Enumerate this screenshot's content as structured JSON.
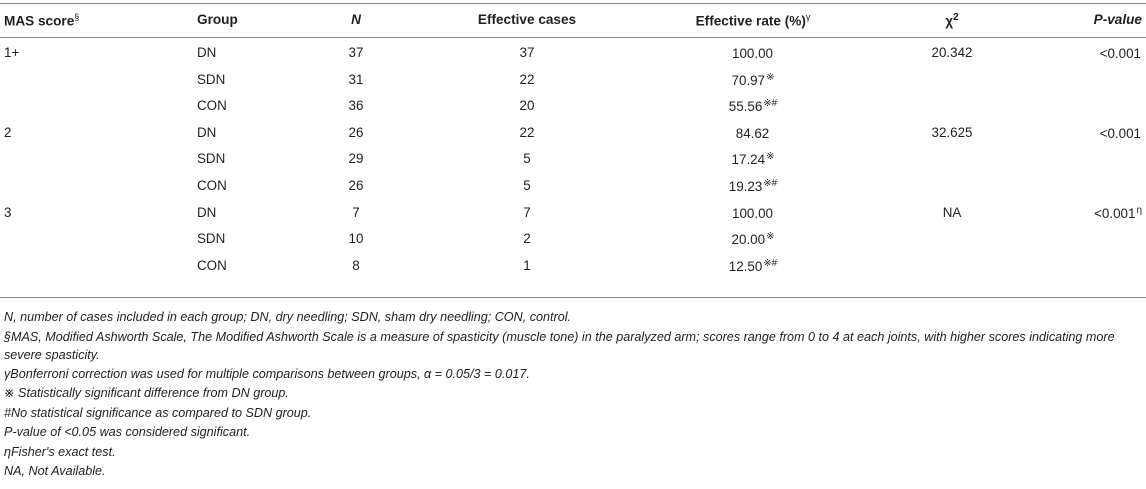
{
  "table": {
    "headers": {
      "mas": "MAS score",
      "mas_sup": "§",
      "group": "Group",
      "n": "N",
      "effective_cases": "Effective cases",
      "effective_rate": "Effective rate (%)",
      "effective_rate_sup": "γ",
      "chi": "χ",
      "chi_sup": "2",
      "p": "P-value"
    },
    "rows": [
      {
        "score": "1+",
        "group": "DN",
        "n": "37",
        "eff": "37",
        "rate": "100.00",
        "rate_mark": "",
        "chi": "20.342",
        "p": "<0.001",
        "p_mark": ""
      },
      {
        "score": "",
        "group": "SDN",
        "n": "31",
        "eff": "22",
        "rate": "70.97",
        "rate_mark": "※",
        "chi": "",
        "p": "",
        "p_mark": ""
      },
      {
        "score": "",
        "group": "CON",
        "n": "36",
        "eff": "20",
        "rate": "55.56",
        "rate_mark": "※#",
        "chi": "",
        "p": "",
        "p_mark": ""
      },
      {
        "score": "2",
        "group": "DN",
        "n": "26",
        "eff": "22",
        "rate": "84.62",
        "rate_mark": "",
        "chi": "32.625",
        "p": "<0.001",
        "p_mark": ""
      },
      {
        "score": "",
        "group": "SDN",
        "n": "29",
        "eff": "5",
        "rate": "17.24",
        "rate_mark": "※",
        "chi": "",
        "p": "",
        "p_mark": ""
      },
      {
        "score": "",
        "group": "CON",
        "n": "26",
        "eff": "5",
        "rate": "19.23",
        "rate_mark": "※#",
        "chi": "",
        "p": "",
        "p_mark": ""
      },
      {
        "score": "3",
        "group": "DN",
        "n": "7",
        "eff": "7",
        "rate": "100.00",
        "rate_mark": "",
        "chi": "NA",
        "p": "<0.001",
        "p_mark": "η"
      },
      {
        "score": "",
        "group": "SDN",
        "n": "10",
        "eff": "2",
        "rate": "20.00",
        "rate_mark": "※",
        "chi": "",
        "p": "",
        "p_mark": ""
      },
      {
        "score": "",
        "group": "CON",
        "n": "8",
        "eff": "1",
        "rate": "12.50",
        "rate_mark": "※#",
        "chi": "",
        "p": "",
        "p_mark": ""
      }
    ]
  },
  "footnotes": [
    "N, number of cases included in each group; DN, dry needling; SDN, sham dry needling; CON, control.",
    "§MAS, Modified Ashworth Scale, The Modified Ashworth Scale is a measure of spasticity (muscle tone) in the paralyzed arm; scores range from 0 to 4 at each joints, with higher scores indicating more severe spasticity.",
    "γBonferroni correction was used for multiple comparisons between groups, α = 0.05/3 = 0.017.",
    "※ Statistically significant difference from DN group.",
    "#No statistical significance as compared to SDN group.",
    "P-value of <0.05 was considered significant.",
    "ηFisher's exact test.",
    "NA, Not Available."
  ]
}
